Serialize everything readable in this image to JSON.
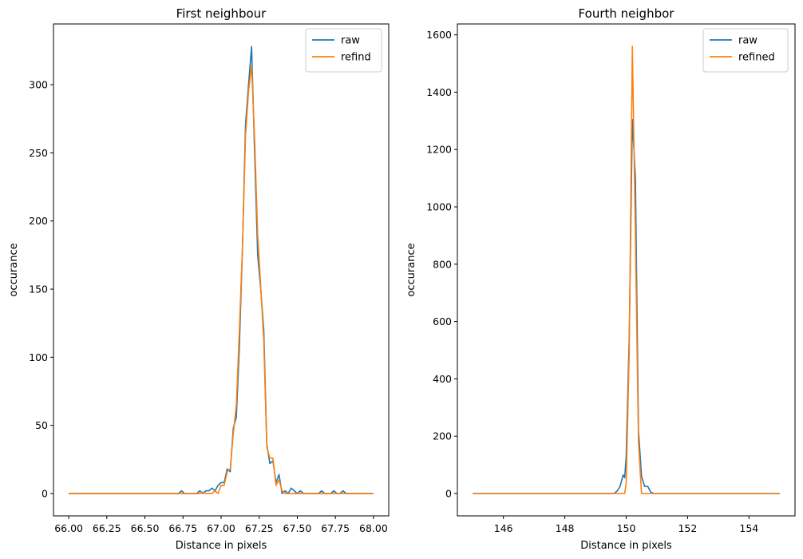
{
  "colors": {
    "raw": "#1f77b4",
    "refined": "#ff7f0e"
  },
  "chart_data": [
    {
      "type": "line",
      "title": "First neighbour",
      "xlabel": "Distance in pixels",
      "ylabel": "occurance",
      "xlim": [
        65.9,
        68.1
      ],
      "ylim": [
        -16.4,
        344.6
      ],
      "xticks": [
        66.0,
        66.25,
        66.5,
        66.75,
        67.0,
        67.25,
        67.5,
        67.75,
        68.0
      ],
      "xtick_labels": [
        "66.00",
        "66.25",
        "66.50",
        "66.75",
        "67.00",
        "67.25",
        "67.50",
        "67.75",
        "68.00"
      ],
      "yticks": [
        0,
        50,
        100,
        150,
        200,
        250,
        300
      ],
      "ytick_labels": [
        "0",
        "50",
        "100",
        "150",
        "200",
        "250",
        "300"
      ],
      "legend_position": "top-right",
      "grid": false,
      "series": [
        {
          "name": "raw",
          "color": "#1f77b4",
          "points": [
            [
              66.0,
              0
            ],
            [
              66.72,
              0
            ],
            [
              66.74,
              2
            ],
            [
              66.76,
              0
            ],
            [
              66.84,
              0
            ],
            [
              66.86,
              2
            ],
            [
              66.88,
              0
            ],
            [
              66.9,
              2
            ],
            [
              66.92,
              2
            ],
            [
              66.94,
              4
            ],
            [
              66.96,
              2
            ],
            [
              66.98,
              6
            ],
            [
              67.0,
              8
            ],
            [
              67.02,
              8
            ],
            [
              67.04,
              18
            ],
            [
              67.06,
              16
            ],
            [
              67.08,
              48
            ],
            [
              67.1,
              56
            ],
            [
              67.12,
              108
            ],
            [
              67.14,
              180
            ],
            [
              67.16,
              270
            ],
            [
              67.18,
              300
            ],
            [
              67.2,
              328
            ],
            [
              67.22,
              250
            ],
            [
              67.24,
              175
            ],
            [
              67.26,
              150
            ],
            [
              67.28,
              120
            ],
            [
              67.3,
              36
            ],
            [
              67.32,
              22
            ],
            [
              67.34,
              24
            ],
            [
              67.36,
              8
            ],
            [
              67.38,
              14
            ],
            [
              67.4,
              0
            ],
            [
              67.42,
              2
            ],
            [
              67.44,
              0
            ],
            [
              67.46,
              4
            ],
            [
              67.48,
              2
            ],
            [
              67.5,
              0
            ],
            [
              67.52,
              2
            ],
            [
              67.54,
              0
            ],
            [
              67.64,
              0
            ],
            [
              67.66,
              2
            ],
            [
              67.68,
              0
            ],
            [
              67.72,
              0
            ],
            [
              67.74,
              2
            ],
            [
              67.76,
              0
            ],
            [
              67.78,
              0
            ],
            [
              67.8,
              2
            ],
            [
              67.82,
              0
            ],
            [
              68.0,
              0
            ]
          ]
        },
        {
          "name": "refind",
          "color": "#ff7f0e",
          "points": [
            [
              66.0,
              0
            ],
            [
              66.86,
              0
            ],
            [
              66.88,
              1
            ],
            [
              66.9,
              0
            ],
            [
              66.94,
              0
            ],
            [
              66.96,
              2
            ],
            [
              66.98,
              0
            ],
            [
              67.0,
              6
            ],
            [
              67.02,
              6
            ],
            [
              67.04,
              16
            ],
            [
              67.06,
              18
            ],
            [
              67.08,
              44
            ],
            [
              67.1,
              65
            ],
            [
              67.12,
              120
            ],
            [
              67.14,
              180
            ],
            [
              67.16,
              262
            ],
            [
              67.18,
              295
            ],
            [
              67.2,
              314
            ],
            [
              67.22,
              260
            ],
            [
              67.24,
              190
            ],
            [
              67.26,
              152
            ],
            [
              67.28,
              112
            ],
            [
              67.3,
              34
            ],
            [
              67.32,
              26
            ],
            [
              67.34,
              26
            ],
            [
              67.36,
              6
            ],
            [
              67.38,
              10
            ],
            [
              67.4,
              2
            ],
            [
              67.42,
              0
            ],
            [
              68.0,
              0
            ]
          ]
        }
      ]
    },
    {
      "type": "line",
      "title": "Fourth neighbor",
      "xlabel": "Distance in pixels",
      "ylabel": "occurance",
      "xlim": [
        144.5,
        155.5
      ],
      "ylim": [
        -78,
        1638
      ],
      "xticks": [
        146,
        148,
        150,
        152,
        154
      ],
      "xtick_labels": [
        "146",
        "148",
        "150",
        "152",
        "154"
      ],
      "yticks": [
        0,
        200,
        400,
        600,
        800,
        1000,
        1200,
        1400,
        1600
      ],
      "ytick_labels": [
        "0",
        "200",
        "400",
        "600",
        "800",
        "1000",
        "1200",
        "1400",
        "1600"
      ],
      "legend_position": "top-right",
      "grid": false,
      "series": [
        {
          "name": "raw",
          "color": "#1f77b4",
          "points": [
            [
              145.0,
              0
            ],
            [
              149.6,
              0
            ],
            [
              149.7,
              8
            ],
            [
              149.8,
              25
            ],
            [
              149.9,
              65
            ],
            [
              149.95,
              55
            ],
            [
              150.0,
              130
            ],
            [
              150.1,
              550
            ],
            [
              150.2,
              1305
            ],
            [
              150.3,
              1100
            ],
            [
              150.4,
              220
            ],
            [
              150.5,
              60
            ],
            [
              150.6,
              25
            ],
            [
              150.7,
              25
            ],
            [
              150.8,
              5
            ],
            [
              150.9,
              0
            ],
            [
              155.0,
              0
            ]
          ]
        },
        {
          "name": "refined",
          "color": "#ff7f0e",
          "points": [
            [
              145.0,
              0
            ],
            [
              149.95,
              0
            ],
            [
              150.0,
              35
            ],
            [
              150.1,
              500
            ],
            [
              150.2,
              1560
            ],
            [
              150.3,
              900
            ],
            [
              150.4,
              180
            ],
            [
              150.5,
              0
            ],
            [
              155.0,
              0
            ]
          ]
        }
      ]
    }
  ]
}
